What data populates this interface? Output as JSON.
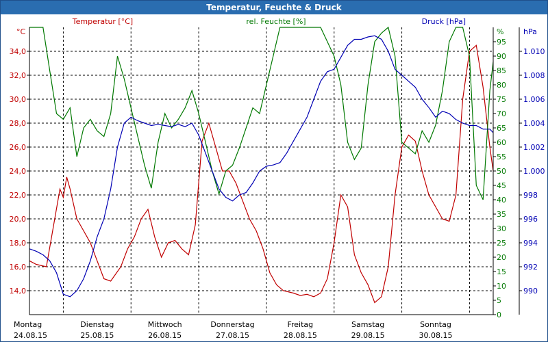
{
  "window": {
    "title": "Temperatur, Feuchte & Druck"
  },
  "chart_data": {
    "type": "line",
    "title": "Temperatur, Feuchte & Druck",
    "days": [
      {
        "name": "Montag",
        "date": "24.08.15"
      },
      {
        "name": "Dienstag",
        "date": "25.08.15"
      },
      {
        "name": "Mittwoch",
        "date": "26.08.15"
      },
      {
        "name": "Donnerstag",
        "date": "27.08.15"
      },
      {
        "name": "Freitag",
        "date": "28.08.15"
      },
      {
        "name": "Samstag",
        "date": "29.08.15"
      },
      {
        "name": "Sonntag",
        "date": "30.08.15"
      }
    ],
    "x_range_days": [
      0,
      6.85
    ],
    "axes": {
      "temperature": {
        "label": "Temperatur [°C]",
        "unit": "°C",
        "ylim": [
          12,
          36
        ],
        "ticks": [
          "14,0",
          "16,0",
          "18,0",
          "20,0",
          "22,0",
          "24,0",
          "26,0",
          "28,0",
          "30,0",
          "32,0",
          "34,0"
        ],
        "tick_values": [
          14,
          16,
          18,
          20,
          22,
          24,
          26,
          28,
          30,
          32,
          34
        ],
        "color": "#c00000"
      },
      "humidity": {
        "label": "rel. Feuchte [%]",
        "unit": "%",
        "ylim": [
          0,
          100
        ],
        "ticks": [
          "0",
          "5",
          "10",
          "15",
          "20",
          "25",
          "30",
          "35",
          "40",
          "45",
          "50",
          "55",
          "60",
          "65",
          "70",
          "75",
          "80",
          "85",
          "90",
          "95"
        ],
        "tick_values": [
          0,
          5,
          10,
          15,
          20,
          25,
          30,
          35,
          40,
          45,
          50,
          55,
          60,
          65,
          70,
          75,
          80,
          85,
          90,
          95
        ],
        "color": "#007800"
      },
      "pressure": {
        "label": "Druck [hPa]",
        "unit": "hPa",
        "ylim": [
          988,
          1012
        ],
        "ticks": [
          "990",
          "992",
          "994",
          "996",
          "998",
          "1.000",
          "1.002",
          "1.004",
          "1.006",
          "1.008",
          "1.010"
        ],
        "tick_values": [
          990,
          992,
          994,
          996,
          998,
          1000,
          1002,
          1004,
          1006,
          1008,
          1010
        ],
        "color": "#0000b4"
      }
    },
    "series": [
      {
        "name": "Temperatur",
        "axis": "temperature",
        "color": "#c00000",
        "x": [
          0,
          0.1,
          0.25,
          0.45,
          0.5,
          0.55,
          0.6,
          0.7,
          0.8,
          0.9,
          1.0,
          1.1,
          1.2,
          1.35,
          1.45,
          1.55,
          1.65,
          1.75,
          1.85,
          1.95,
          2.05,
          2.15,
          2.25,
          2.35,
          2.45,
          2.55,
          2.65,
          2.75,
          2.85,
          2.95,
          3.05,
          3.15,
          3.25,
          3.35,
          3.45,
          3.55,
          3.65,
          3.75,
          3.9,
          4.0,
          4.1,
          4.2,
          4.3,
          4.4,
          4.5,
          4.6,
          4.7,
          4.8,
          4.9,
          5.0,
          5.1,
          5.2,
          5.3,
          5.4,
          5.5,
          5.6,
          5.7,
          5.8,
          5.9,
          6.0,
          6.1,
          6.2,
          6.3,
          6.4,
          6.5,
          6.6,
          6.7,
          6.8,
          6.85
        ],
        "values": [
          16.5,
          16.2,
          16.0,
          22.5,
          21.8,
          23.5,
          22.5,
          20.0,
          19.0,
          18.0,
          16.5,
          15.0,
          14.8,
          16.0,
          17.5,
          18.5,
          20.0,
          20.8,
          18.5,
          16.8,
          18.0,
          18.2,
          17.5,
          17.0,
          19.5,
          26.5,
          28.0,
          26.0,
          24.0,
          24.0,
          23.0,
          21.5,
          20.0,
          19.0,
          17.5,
          15.5,
          14.5,
          14.0,
          13.8,
          13.6,
          13.7,
          13.5,
          13.8,
          15.0,
          18.0,
          22.0,
          21.0,
          17.0,
          15.5,
          14.5,
          13.0,
          13.5,
          16.0,
          22.0,
          26.0,
          27.0,
          26.5,
          24.0,
          22.0,
          21.0,
          20.0,
          19.8,
          22.0,
          30.0,
          34.0,
          34.5,
          31.0,
          26.0,
          24.0
        ]
      },
      {
        "name": "rel. Feuchte",
        "axis": "humidity",
        "color": "#007800",
        "x": [
          0,
          0.1,
          0.2,
          0.3,
          0.4,
          0.5,
          0.6,
          0.7,
          0.8,
          0.9,
          1.0,
          1.1,
          1.2,
          1.3,
          1.4,
          1.5,
          1.6,
          1.7,
          1.8,
          1.9,
          2.0,
          2.1,
          2.2,
          2.3,
          2.4,
          2.5,
          2.6,
          2.7,
          2.8,
          2.9,
          3.0,
          3.1,
          3.2,
          3.3,
          3.4,
          3.5,
          3.6,
          3.7,
          3.8,
          3.9,
          4.0,
          4.1,
          4.2,
          4.3,
          4.4,
          4.5,
          4.6,
          4.7,
          4.8,
          4.9,
          5.0,
          5.1,
          5.2,
          5.3,
          5.4,
          5.5,
          5.6,
          5.7,
          5.8,
          5.9,
          6.0,
          6.1,
          6.2,
          6.3,
          6.4,
          6.5,
          6.6,
          6.7,
          6.8,
          6.85
        ],
        "values": [
          100,
          100,
          100,
          85,
          70,
          68,
          72,
          55,
          65,
          68,
          64,
          62,
          70,
          90,
          82,
          72,
          62,
          52,
          44,
          60,
          70,
          65,
          68,
          72,
          78,
          70,
          60,
          50,
          42,
          50,
          52,
          58,
          65,
          72,
          70,
          80,
          90,
          100,
          100,
          100,
          100,
          100,
          100,
          100,
          95,
          90,
          80,
          60,
          54,
          58,
          80,
          95,
          98,
          100,
          90,
          60,
          58,
          56,
          64,
          60,
          66,
          78,
          95,
          100,
          100,
          90,
          45,
          40,
          78,
          88
        ]
      },
      {
        "name": "Druck",
        "axis": "pressure",
        "color": "#0000b4",
        "x": [
          0,
          0.1,
          0.2,
          0.3,
          0.4,
          0.5,
          0.6,
          0.7,
          0.8,
          0.9,
          1.0,
          1.1,
          1.2,
          1.3,
          1.4,
          1.5,
          1.6,
          1.7,
          1.8,
          1.9,
          2.0,
          2.1,
          2.2,
          2.3,
          2.4,
          2.5,
          2.6,
          2.7,
          2.8,
          2.9,
          3.0,
          3.1,
          3.2,
          3.3,
          3.4,
          3.5,
          3.6,
          3.7,
          3.8,
          3.9,
          4.0,
          4.1,
          4.2,
          4.3,
          4.4,
          4.5,
          4.6,
          4.7,
          4.8,
          4.9,
          5.0,
          5.1,
          5.2,
          5.3,
          5.4,
          5.5,
          5.6,
          5.7,
          5.8,
          5.9,
          6.0,
          6.1,
          6.2,
          6.3,
          6.4,
          6.5,
          6.6,
          6.7,
          6.8,
          6.85
        ],
        "values": [
          993.5,
          993.3,
          993.0,
          992.5,
          991.5,
          989.7,
          989.5,
          990.0,
          991.0,
          992.5,
          994.5,
          996.0,
          998.5,
          1002.0,
          1004.0,
          1004.5,
          1004.2,
          1004.0,
          1003.8,
          1003.9,
          1003.8,
          1003.7,
          1003.9,
          1003.7,
          1004.0,
          1003.0,
          1001.5,
          1000.0,
          998.5,
          997.8,
          997.5,
          998.0,
          998.2,
          999.0,
          1000.0,
          1000.4,
          1000.5,
          1000.7,
          1001.5,
          1002.5,
          1003.5,
          1004.5,
          1006.0,
          1007.5,
          1008.3,
          1008.5,
          1009.5,
          1010.5,
          1011.0,
          1011.0,
          1011.2,
          1011.3,
          1011.0,
          1010.0,
          1008.5,
          1008.0,
          1007.5,
          1007.0,
          1006.0,
          1005.3,
          1004.5,
          1005.0,
          1004.8,
          1004.3,
          1004.0,
          1003.8,
          1003.8,
          1003.5,
          1003.5,
          1003.2
        ]
      }
    ]
  }
}
